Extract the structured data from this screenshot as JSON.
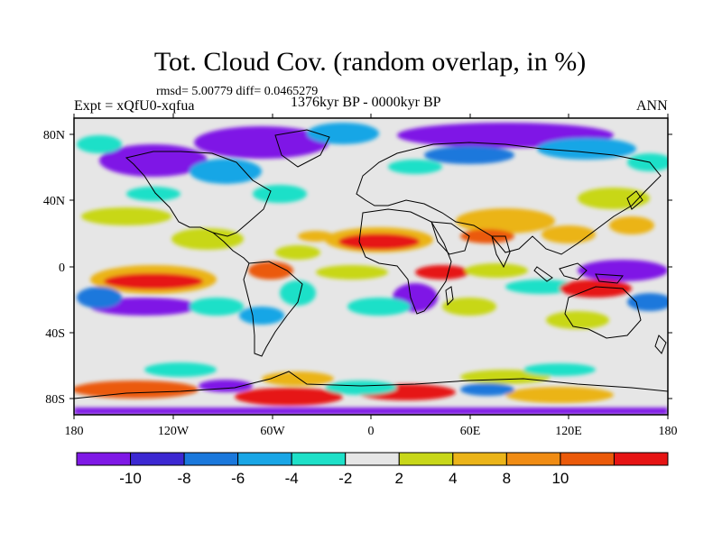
{
  "title": "Tot. Cloud Cov. (random overlap, in %)",
  "stats": "rmsd= 5.00779 diff= 0.0465279",
  "experiment": "Expt = xQfU0-xqfua",
  "period": "1376kyr BP - 0000kyr BP",
  "season": "ANN",
  "lat_ticks": [
    "80N",
    "40N",
    "0",
    "40S",
    "80S"
  ],
  "lon_ticks": [
    "180",
    "120W",
    "60W",
    "0",
    "60E",
    "120E",
    "180"
  ],
  "colorbar": {
    "labels": [
      "-10",
      "-8",
      "-6",
      "-4",
      "-2",
      "2",
      "4",
      "8",
      "10"
    ],
    "colors": [
      "#7f19e6",
      "#3c28d2",
      "#1a78dc",
      "#19a6e6",
      "#1ee0c8",
      "#e6e6e6",
      "#c8d719",
      "#ebb419",
      "#f08c14",
      "#eb5a0a",
      "#e61414"
    ]
  }
}
